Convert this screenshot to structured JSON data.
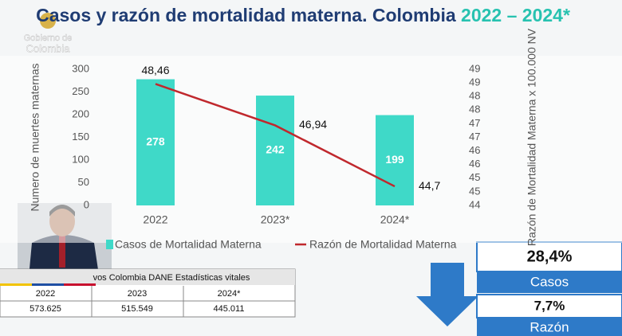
{
  "chart_data": {
    "type": "bar-line",
    "title": "Casos y razón de mortalidad materna. Colombia",
    "subtitle": "2022 – 2024*",
    "categories": [
      "2022",
      "2023*",
      "2024*"
    ],
    "ylabel": "Numero de muertes maternas",
    "y2label": "Razón de Mortalidad Materna x 100.000 NV",
    "ylim": [
      0,
      300
    ],
    "yticks": [
      0,
      50,
      100,
      150,
      200,
      250,
      300
    ],
    "y2lim": [
      44,
      49
    ],
    "y2ticks": [
      44,
      {
        "value": 44.5,
        "label": "45"
      },
      45,
      {
        "value": 45.5,
        "label": "46"
      },
      46,
      {
        "value": 46.5,
        "label": "47"
      },
      47,
      {
        "value": 47.5,
        "label": "48"
      },
      48,
      {
        "value": 48.5,
        "label": "49"
      },
      49
    ],
    "series": [
      {
        "name": "Casos de Mortalidad Materna",
        "type": "bar",
        "color": "#3fd9c8",
        "values": [
          278,
          242,
          199
        ]
      },
      {
        "name": "Razón de Mortalidad Materna",
        "type": "line",
        "axis": "y2",
        "color": "#c0282d",
        "values": [
          48.46,
          46.94,
          44.7
        ],
        "value_labels": [
          "48,46",
          "46,94",
          "44,7"
        ]
      }
    ],
    "grid": false
  },
  "logo": {
    "line1": "Gobierno de",
    "line2": "Colombia"
  },
  "table": {
    "title": "vos Colombia DANE Estadísticas vitales",
    "header": [
      "2022",
      "2023",
      "2024*"
    ],
    "rows": [
      [
        "573.625",
        "515.549",
        "445.011"
      ]
    ]
  },
  "summary": [
    {
      "value": "28,4%",
      "label": "Casos"
    },
    {
      "value": "7,7%",
      "label": "Razón"
    }
  ]
}
